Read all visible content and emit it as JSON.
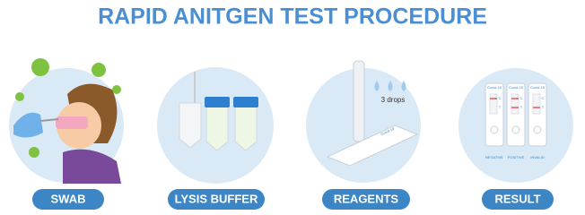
{
  "title": "RAPID ANITGEN TEST PROCEDURE",
  "steps": [
    {
      "label": "SWAB"
    },
    {
      "label": "LYSIS BUFFER"
    },
    {
      "label": "REAGENTS",
      "note": "3 drops",
      "cassette": "Covid-19"
    },
    {
      "label": "RESULT",
      "tests": [
        {
          "name": "Covid-19",
          "c": "C",
          "t": "T",
          "result": "NEGATIVE"
        },
        {
          "name": "Covid-19",
          "c": "C",
          "t": "T",
          "result": "POSITIVE"
        },
        {
          "name": "Covid-19",
          "c": "C",
          "t": "T",
          "result": "INVALID"
        }
      ]
    }
  ]
}
